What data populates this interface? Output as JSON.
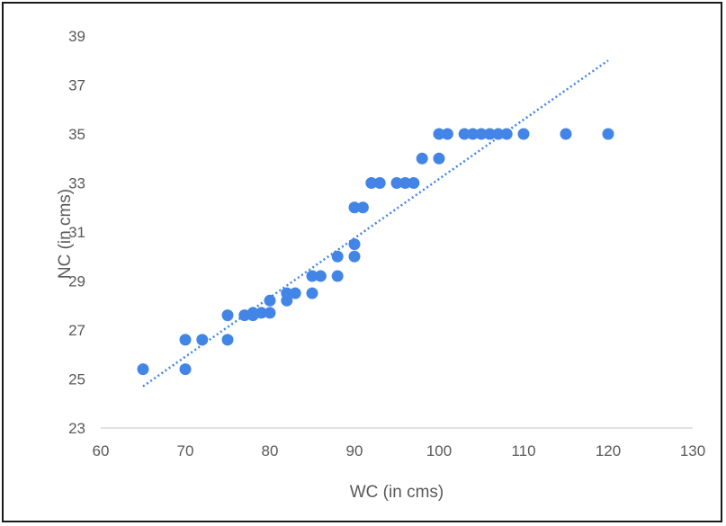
{
  "chart_data": {
    "type": "scatter",
    "xlabel": "WC (in cms)",
    "ylabel": "NC  (in cms)",
    "xlim": [
      60,
      130
    ],
    "ylim": [
      23,
      39
    ],
    "xticks": [
      60,
      70,
      80,
      90,
      100,
      110,
      120,
      130
    ],
    "yticks": [
      23,
      25,
      27,
      29,
      31,
      33,
      35,
      37,
      39
    ],
    "grid": false,
    "legend": "none",
    "point_color": "#4285e6",
    "trendline": {
      "style": "dotted",
      "color": "#4285e6",
      "points": [
        [
          65,
          24.7
        ],
        [
          120,
          38.0
        ]
      ]
    },
    "points": [
      [
        65,
        25.4
      ],
      [
        70,
        25.4
      ],
      [
        70,
        26.6
      ],
      [
        72,
        26.6
      ],
      [
        75,
        26.6
      ],
      [
        75,
        27.6
      ],
      [
        77,
        27.6
      ],
      [
        78,
        27.6
      ],
      [
        78,
        27.7
      ],
      [
        79,
        27.7
      ],
      [
        80,
        27.7
      ],
      [
        80,
        28.2
      ],
      [
        82,
        28.2
      ],
      [
        82,
        28.5
      ],
      [
        83,
        28.5
      ],
      [
        85,
        28.5
      ],
      [
        85,
        29.2
      ],
      [
        86,
        29.2
      ],
      [
        88,
        29.2
      ],
      [
        88,
        30.0
      ],
      [
        90,
        30.0
      ],
      [
        90,
        30.5
      ],
      [
        90,
        32.0
      ],
      [
        91,
        32.0
      ],
      [
        92,
        33.0
      ],
      [
        93,
        33.0
      ],
      [
        95,
        33.0
      ],
      [
        96,
        33.0
      ],
      [
        97,
        33.0
      ],
      [
        98,
        34.0
      ],
      [
        100,
        34.0
      ],
      [
        100,
        35.0
      ],
      [
        101,
        35.0
      ],
      [
        103,
        35.0
      ],
      [
        104,
        35.0
      ],
      [
        105,
        35.0
      ],
      [
        106,
        35.0
      ],
      [
        107,
        35.0
      ],
      [
        108,
        35.0
      ],
      [
        110,
        35.0
      ],
      [
        115,
        35.0
      ],
      [
        120,
        35.0
      ]
    ]
  }
}
